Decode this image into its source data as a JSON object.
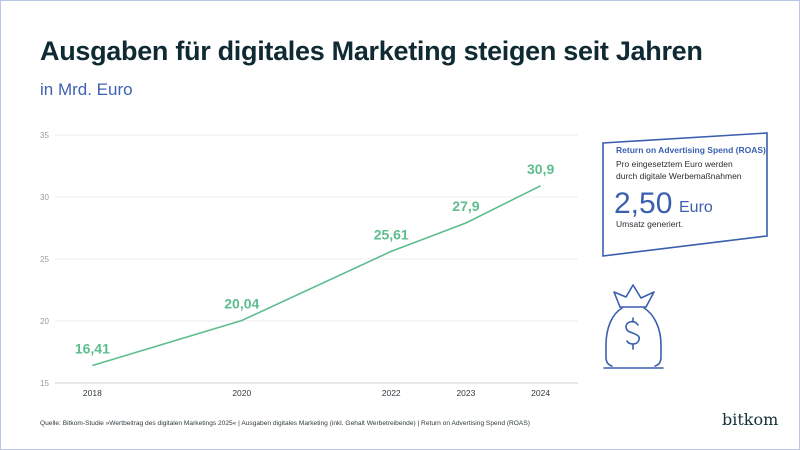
{
  "header": {
    "title": "Ausgaben für digitales Marketing steigen seit Jahren",
    "subtitle": "in Mrd. Euro"
  },
  "colors": {
    "title": "#0f2a33",
    "accent_blue": "#3a5faf",
    "line_green": "#5cbd8d",
    "grid": "#e6e6e6",
    "frame": "#b9c6e4"
  },
  "chart_data": {
    "type": "line",
    "title": "Ausgaben für digitales Marketing steigen seit Jahren",
    "subtitle": "in Mrd. Euro",
    "xlabel": "",
    "ylabel": "",
    "x": [
      2018,
      2020,
      2022,
      2023,
      2024
    ],
    "x_tick_labels": [
      "2018",
      "2020",
      "2022",
      "2023",
      "2024"
    ],
    "series": [
      {
        "name": "Ausgaben digitales Marketing",
        "values": [
          16.41,
          20.04,
          25.61,
          27.9,
          30.9
        ],
        "labels": [
          "16,41",
          "20,04",
          "25,61",
          "27,9",
          "30,9"
        ]
      }
    ],
    "ylim": [
      15,
      35
    ],
    "y_ticks": [
      15,
      20,
      25,
      30,
      35
    ],
    "y_tick_labels": [
      "15",
      "20",
      "25",
      "30",
      "35"
    ],
    "xlim": [
      2017.5,
      2024.5
    ],
    "grid": true,
    "legend": "none"
  },
  "roas_box": {
    "title": "Return on Advertising Spend (ROAS)",
    "line1": "Pro eingesetztem Euro werden",
    "line2": "durch digitale Werbemaßnahmen",
    "value": "2,50",
    "unit": "Euro",
    "line3": "Umsatz generiert."
  },
  "icons": {
    "money_bag": "money-bag-icon"
  },
  "footer": {
    "source": "Quelle: Bitkom-Studie »Wertbeitrag des digitalen Marketings 2025« | Ausgaben digitales Marketing (inkl. Gehalt Werbetreibende) | Return on Advertising Spend (ROAS)",
    "logo": "bitkom"
  }
}
